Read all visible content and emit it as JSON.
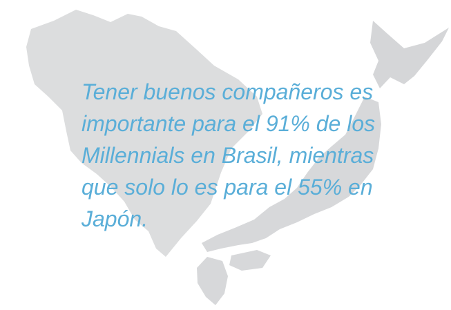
{
  "quote": {
    "lines": [
      "Tener buenos compañeros es",
      "importante para el 91% de los",
      "Millennials en Brasil, mientras",
      "que solo lo es para el 55% en",
      "Japón."
    ]
  }
}
